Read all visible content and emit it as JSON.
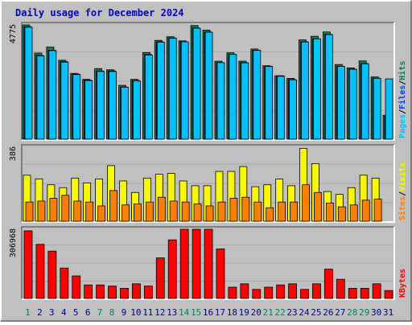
{
  "title": "Daily usage for December 2024",
  "colors": {
    "background": "#c0c0c0",
    "title": "#0000c0",
    "hits": "#00805c",
    "files": "#0040ff",
    "pages": "#00c0ff",
    "visits": "#f8f800",
    "sites": "#ff8000",
    "kbytes": "#ff0000",
    "weekend_day": "#00805c",
    "weekday": "#000080"
  },
  "chart_data": [
    {
      "type": "bar",
      "name": "hits-files-pages",
      "ymax_label": "4775",
      "ymax": 4775,
      "legend": [
        "Pages",
        "Files",
        "Hits"
      ],
      "categories": [
        "1",
        "2",
        "3",
        "4",
        "5",
        "6",
        "7",
        "8",
        "9",
        "10",
        "11",
        "12",
        "13",
        "14",
        "15",
        "16",
        "17",
        "18",
        "19",
        "20",
        "21",
        "22",
        "23",
        "24",
        "25",
        "26",
        "27",
        "28",
        "29",
        "30",
        "31"
      ],
      "series": [
        {
          "name": "Hits",
          "values": [
            4775,
            3600,
            3850,
            3300,
            2750,
            2500,
            2950,
            2900,
            2250,
            2500,
            3620,
            4130,
            4280,
            4110,
            4750,
            4560,
            3260,
            3610,
            3260,
            3770,
            3070,
            2650,
            2540,
            4150,
            4300,
            4480,
            3120,
            2980,
            3270,
            2600,
            1000
          ]
        },
        {
          "name": "Files",
          "values": [
            4700,
            3500,
            3720,
            3240,
            2720,
            2470,
            2850,
            2850,
            2180,
            2450,
            3540,
            4070,
            4230,
            4070,
            4650,
            4480,
            3200,
            3550,
            3200,
            3720,
            3050,
            2650,
            2490,
            4070,
            4200,
            4380,
            3050,
            2930,
            3160,
            2550,
            950
          ]
        },
        {
          "name": "Pages",
          "values": [
            4680,
            3480,
            3700,
            3220,
            2700,
            2450,
            2830,
            2830,
            2170,
            2430,
            3520,
            4050,
            4220,
            4070,
            4640,
            4470,
            3200,
            3540,
            3190,
            3710,
            3040,
            2630,
            2480,
            4060,
            4190,
            4370,
            3040,
            2920,
            3150,
            2540,
            2520
          ]
        }
      ]
    },
    {
      "type": "bar",
      "name": "sites-visits",
      "ymax_label": "386",
      "ymax": 386,
      "legend": [
        "Sites",
        "Visits"
      ],
      "categories": [
        "1",
        "2",
        "3",
        "4",
        "5",
        "6",
        "7",
        "8",
        "9",
        "10",
        "11",
        "12",
        "13",
        "14",
        "15",
        "16",
        "17",
        "18",
        "19",
        "20",
        "21",
        "22",
        "23",
        "24",
        "25",
        "26",
        "27",
        "28",
        "29",
        "30",
        "31"
      ],
      "series": [
        {
          "name": "Visits",
          "values": [
            240,
            220,
            190,
            175,
            225,
            200,
            220,
            290,
            210,
            150,
            225,
            245,
            250,
            210,
            185,
            185,
            260,
            260,
            285,
            180,
            190,
            220,
            185,
            380,
            300,
            155,
            140,
            175,
            240,
            225,
            0
          ]
        },
        {
          "name": "Sites",
          "values": [
            100,
            105,
            120,
            135,
            105,
            100,
            80,
            160,
            85,
            90,
            100,
            125,
            105,
            100,
            90,
            80,
            100,
            120,
            125,
            100,
            70,
            100,
            100,
            190,
            150,
            95,
            75,
            85,
            110,
            115,
            0
          ]
        }
      ]
    },
    {
      "type": "bar",
      "name": "kbytes",
      "ymax_label": "306968",
      "ymax": 306968,
      "legend": [
        "KBytes"
      ],
      "categories": [
        "1",
        "2",
        "3",
        "4",
        "5",
        "6",
        "7",
        "8",
        "9",
        "10",
        "11",
        "12",
        "13",
        "14",
        "15",
        "16",
        "17",
        "18",
        "19",
        "20",
        "21",
        "22",
        "23",
        "24",
        "25",
        "26",
        "27",
        "28",
        "29",
        "30",
        "31"
      ],
      "series": [
        {
          "name": "KBytes",
          "values": [
            300000,
            240000,
            210000,
            135000,
            100000,
            60000,
            60000,
            55000,
            45000,
            65000,
            55000,
            180000,
            260000,
            306968,
            306968,
            306968,
            220000,
            50000,
            65000,
            40000,
            50000,
            60000,
            65000,
            40000,
            65000,
            130000,
            85000,
            45000,
            45000,
            65000,
            35000
          ]
        }
      ]
    }
  ],
  "x_labels": [
    "1",
    "2",
    "3",
    "4",
    "5",
    "6",
    "7",
    "8",
    "9",
    "10",
    "11",
    "12",
    "13",
    "14",
    "15",
    "16",
    "17",
    "18",
    "19",
    "20",
    "21",
    "22",
    "23",
    "24",
    "25",
    "26",
    "27",
    "28",
    "29",
    "30",
    "31"
  ],
  "weekend_days": [
    1,
    7,
    8,
    14,
    15,
    21,
    22,
    28,
    29
  ]
}
